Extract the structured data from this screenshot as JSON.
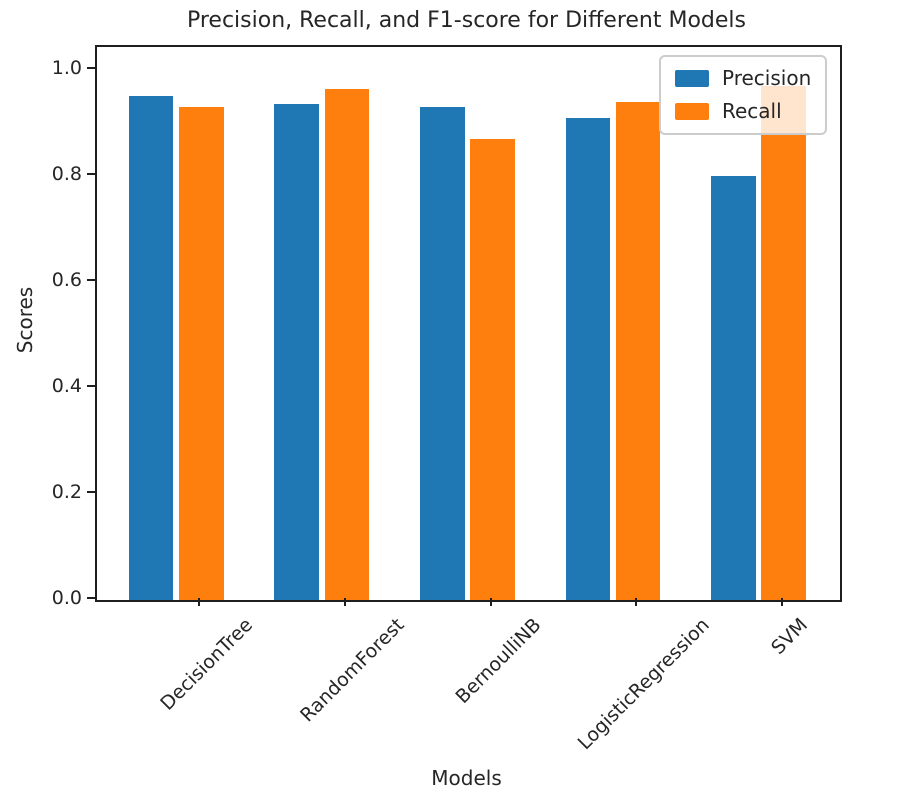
{
  "chart_data": {
    "type": "bar",
    "title": "Precision, Recall, and F1-score for Different Models",
    "xlabel": "Models",
    "ylabel": "Scores",
    "categories": [
      "DecisionTree",
      "RandomForest",
      "BernoulliNB",
      "LogisticRegression",
      "SVM"
    ],
    "series": [
      {
        "name": "Precision",
        "color": "#1f77b4",
        "values": [
          0.95,
          0.935,
          0.93,
          0.91,
          0.8
        ]
      },
      {
        "name": "Recall",
        "color": "#ff7f0e",
        "values": [
          0.93,
          0.965,
          0.87,
          0.94,
          0.97
        ]
      }
    ],
    "ylim": [
      0.0,
      1.043
    ],
    "yticks": [
      0.0,
      0.2,
      0.4,
      0.6,
      0.8,
      1.0
    ],
    "ytick_labels": [
      "0.0",
      "0.2",
      "0.4",
      "0.6",
      "0.8",
      "1.0"
    ],
    "xtick_rotation_deg": 45,
    "grid": false,
    "legend": {
      "position": "upper right",
      "entries": [
        "Precision",
        "Recall"
      ]
    }
  },
  "colors": {
    "precision_bar": "#1f77b4",
    "recall_bar": "#ff7f0e",
    "spine": "#1f1f1f",
    "text": "#262626",
    "legend_border": "#cccccc"
  }
}
